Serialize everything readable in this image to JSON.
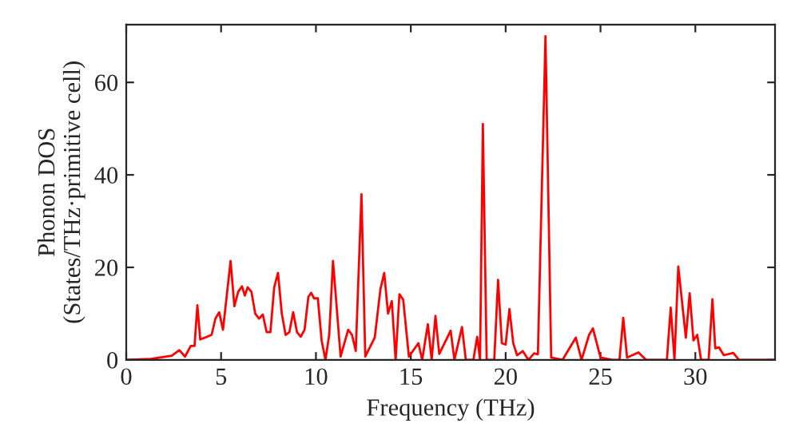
{
  "chart_data": {
    "type": "line",
    "xlabel": "Frequency (THz)",
    "ylabel": "Phonon DOS\n(States/THz·primitive cell)",
    "xlim": [
      0,
      34.2
    ],
    "ylim": [
      0,
      72.5
    ],
    "xticks": [
      0,
      5,
      10,
      15,
      20,
      25,
      30
    ],
    "yticks": [
      0,
      20,
      40,
      60
    ],
    "grid": false,
    "legend": false,
    "marker": "none",
    "line_style": "solid",
    "series": [
      {
        "color": "#ff0000",
        "x": [
          0,
          1.3,
          2.4,
          2.8,
          3.1,
          3.4,
          3.6,
          3.75,
          3.9,
          4.5,
          4.7,
          4.9,
          5.1,
          5.5,
          5.7,
          5.9,
          6.1,
          6.25,
          6.4,
          6.6,
          6.8,
          7.0,
          7.2,
          7.4,
          7.6,
          7.8,
          8.0,
          8.2,
          8.4,
          8.6,
          8.8,
          9.0,
          9.2,
          9.4,
          9.6,
          9.75,
          9.9,
          10.1,
          10.3,
          10.5,
          10.7,
          10.9,
          11.3,
          11.7,
          11.9,
          12.1,
          12.4,
          12.6,
          13.1,
          13.4,
          13.6,
          13.8,
          14.0,
          14.2,
          14.4,
          14.6,
          14.9,
          15.4,
          15.6,
          15.9,
          16.1,
          16.3,
          16.5,
          17.1,
          17.3,
          17.7,
          17.9,
          18.3,
          18.5,
          18.65,
          18.8,
          19.0,
          19.4,
          19.6,
          19.8,
          20.0,
          20.2,
          20.4,
          20.6,
          20.9,
          21.2,
          21.5,
          21.7,
          22.1,
          22.4,
          23.0,
          23.7,
          24.0,
          24.4,
          24.6,
          25.0,
          25.6,
          26.0,
          26.2,
          26.4,
          27.0,
          27.4,
          28.5,
          28.7,
          28.9,
          29.1,
          29.5,
          29.7,
          29.9,
          30.1,
          30.3,
          30.7,
          30.9,
          31.05,
          31.25,
          31.5,
          32.0,
          32.3,
          34.2
        ],
        "values": [
          0,
          0.2,
          0.9,
          2.1,
          0.7,
          3,
          3,
          11.8,
          4.4,
          5.4,
          8.9,
          10.3,
          6.5,
          21.4,
          11.6,
          14.7,
          15.9,
          13.9,
          15.7,
          14.7,
          10,
          8.9,
          9.8,
          6,
          6,
          15.7,
          18.8,
          10,
          5.4,
          6,
          10.3,
          6,
          5,
          6.5,
          13.6,
          14.5,
          13.3,
          13.3,
          4.2,
          0,
          5.4,
          21.4,
          0.7,
          6.5,
          5.4,
          1.9,
          35.8,
          0.7,
          4.8,
          15.3,
          18.8,
          10,
          12.7,
          0,
          14.2,
          13,
          0.7,
          3.6,
          0,
          7.7,
          0,
          9.5,
          1.3,
          6.3,
          0,
          7.1,
          0,
          0,
          5,
          0,
          51,
          0,
          0,
          17.3,
          3.6,
          3.3,
          11,
          3.6,
          1,
          1.9,
          0,
          1.4,
          1.2,
          70,
          0.5,
          0,
          4.8,
          0,
          5.4,
          6.8,
          0.5,
          0,
          0,
          9.1,
          0.5,
          1.6,
          0,
          0,
          11.3,
          0,
          20.2,
          4.8,
          14.4,
          4.2,
          5.4,
          0,
          0,
          13.1,
          2.5,
          2.7,
          1,
          1.5,
          0,
          0
        ]
      }
    ]
  }
}
